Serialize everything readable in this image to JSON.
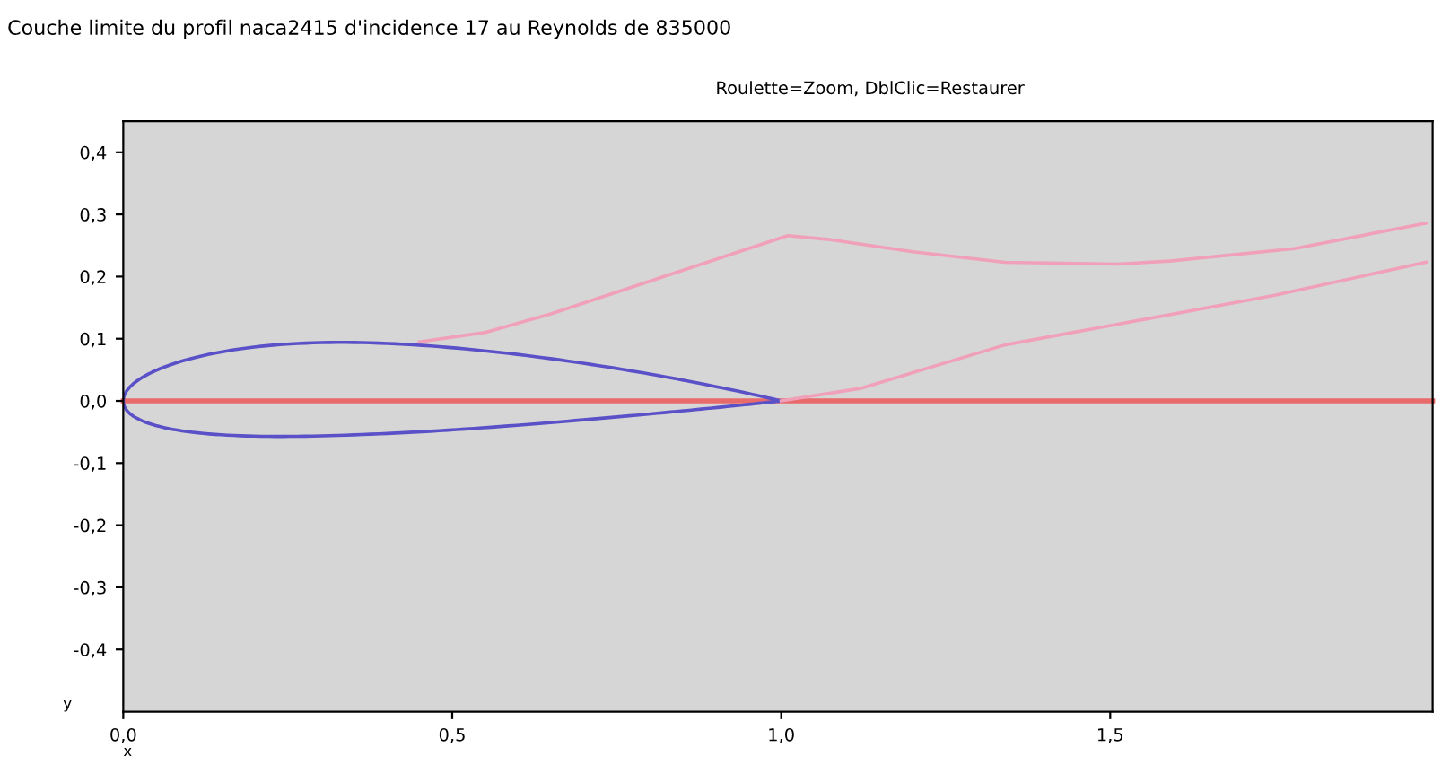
{
  "chart_data": {
    "type": "line",
    "title": "Couche limite du profil naca2415 d'incidence 17 au Reynolds de 835000",
    "xlabel": "x",
    "ylabel": "y",
    "annotations": [
      "Roulette=Zoom, DblClic=Restaurer"
    ],
    "xlim": [
      0,
      1.99
    ],
    "ylim": [
      -0.5,
      0.45
    ],
    "xticks": [
      {
        "value": 0,
        "label": "0,0"
      },
      {
        "value": 0.5,
        "label": "0,5"
      },
      {
        "value": 1,
        "label": "1,0"
      },
      {
        "value": 1.5,
        "label": "1,5"
      }
    ],
    "yticks": [
      {
        "value": -0.4,
        "label": "-0,4"
      },
      {
        "value": -0.3,
        "label": "-0,3"
      },
      {
        "value": -0.2,
        "label": "-0,2"
      },
      {
        "value": -0.1,
        "label": "-0,1"
      },
      {
        "value": 0,
        "label": "0,0"
      },
      {
        "value": 0.1,
        "label": "0,1"
      },
      {
        "value": 0.2,
        "label": "0,2"
      },
      {
        "value": 0.3,
        "label": "0,3"
      },
      {
        "value": 0.4,
        "label": "0,4"
      }
    ],
    "grid": false,
    "marker": "none",
    "line_style": "solid",
    "ref_lines": [
      {
        "axis": "y",
        "value": 0,
        "color": "#e86a6a"
      }
    ],
    "series": [
      {
        "color": "#f0a0b8",
        "x": [
          0.45,
          0.55,
          0.65,
          0.75,
          0.85,
          0.95,
          1.01,
          1.07,
          1.2,
          1.34,
          1.51,
          1.59,
          1.78,
          1.98
        ],
        "values": [
          0.095,
          0.11,
          0.14,
          0.175,
          0.21,
          0.245,
          0.266,
          0.26,
          0.24,
          0.223,
          0.22,
          0.225,
          0.245,
          0.286
        ]
      },
      {
        "color": "#f0a0b8",
        "x": [
          1.0,
          1.12,
          1.34,
          1.51,
          1.75,
          1.98
        ],
        "values": [
          0,
          0.02,
          0.09,
          0.123,
          0.17,
          0.223
        ]
      }
    ]
  }
}
